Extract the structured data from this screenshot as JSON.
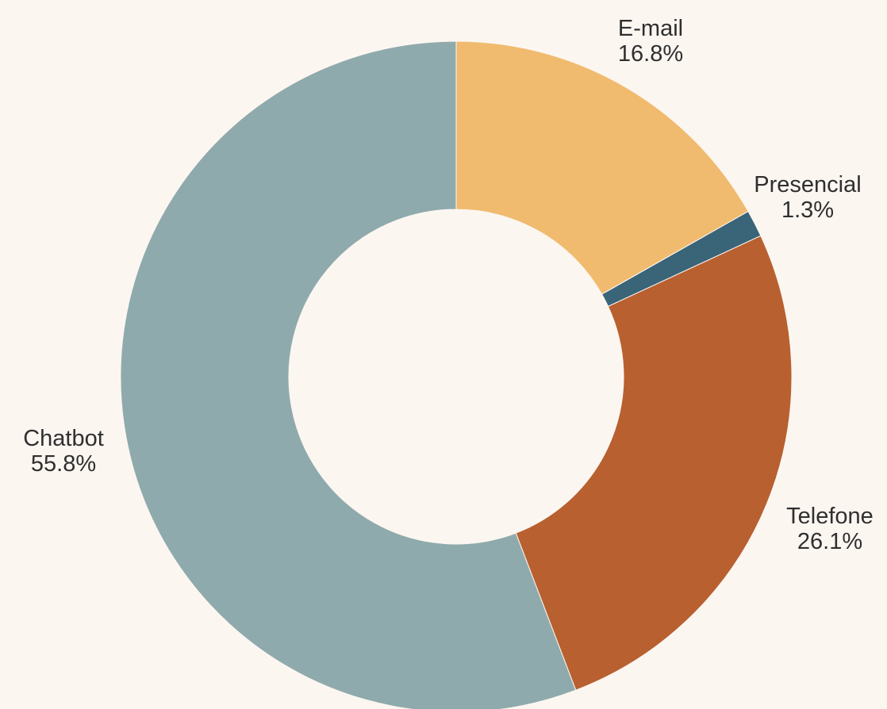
{
  "chart_data": {
    "type": "pie",
    "variant": "donut",
    "start_angle_deg": 0,
    "direction": "clockwise",
    "slices": [
      {
        "label": "E-mail",
        "value": 16.8,
        "display": "16.8%",
        "color": "#f0bb6f"
      },
      {
        "label": "Presencial",
        "value": 1.3,
        "display": "1.3%",
        "color": "#3a6478"
      },
      {
        "label": "Telefone",
        "value": 26.1,
        "display": "26.1%",
        "color": "#b8602f"
      },
      {
        "label": "Chatbot",
        "value": 55.8,
        "display": "55.8%",
        "color": "#8faaac"
      }
    ],
    "background": "#fcf6f1",
    "legend": "none"
  }
}
